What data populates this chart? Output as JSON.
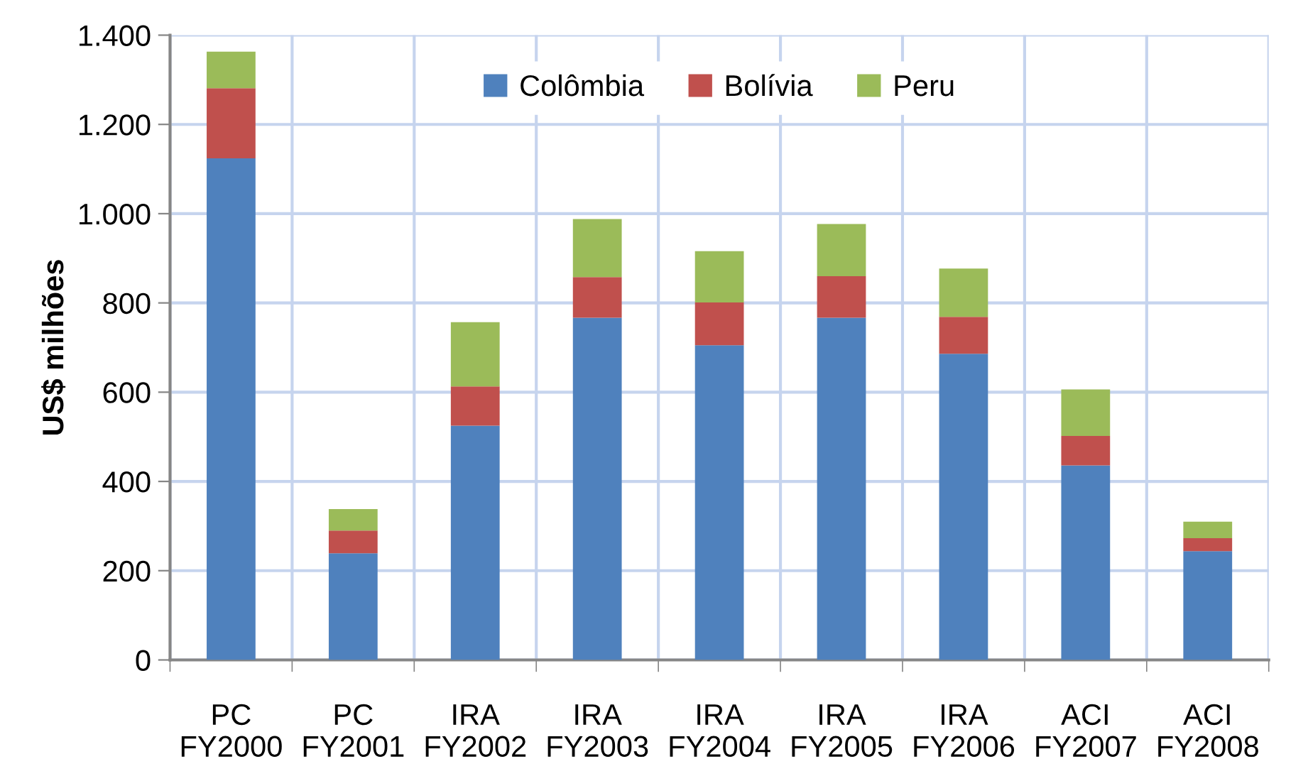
{
  "chart_data": {
    "type": "bar",
    "stacked": true,
    "ylabel": "US$ milhões",
    "categories": [
      "PC\nFY2000",
      "PC\nFY2001",
      "IRA\nFY2002",
      "IRA\nFY2003",
      "IRA\nFY2004",
      "IRA\nFY2005",
      "IRA\nFY2006",
      "ACI\nFY2007",
      "ACI\nFY2008"
    ],
    "series": [
      {
        "name": "Colômbia",
        "color": "#4f81bd",
        "values": [
          1124,
          239,
          525,
          767,
          705,
          767,
          686,
          436,
          244
        ]
      },
      {
        "name": "Bolívia",
        "color": "#c0504d",
        "values": [
          157,
          51,
          88,
          91,
          96,
          93,
          83,
          66,
          29
        ]
      },
      {
        "name": "Peru",
        "color": "#9bbb59",
        "values": [
          82,
          48,
          144,
          130,
          115,
          117,
          108,
          104,
          37
        ]
      }
    ],
    "ylim": [
      0,
      1400
    ],
    "yticks": [
      0,
      200,
      400,
      600,
      800,
      {
        "value": 1000,
        "label": "1.000"
      },
      {
        "value": 1200,
        "label": "1.200"
      },
      {
        "value": 1400,
        "label": "1.400"
      }
    ],
    "grid": true,
    "legend": "top"
  }
}
